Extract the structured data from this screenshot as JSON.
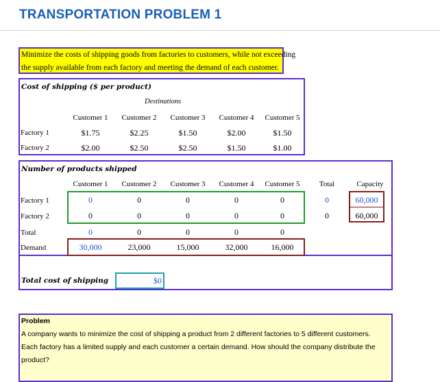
{
  "title": "TRANSPORTATION PROBLEM 1",
  "intro": {
    "line1": "Minimize the costs of shipping goods from factories to customers, while not exceeding",
    "line2": "the supply available from each factory and meeting the demand of each customer."
  },
  "cost_section": {
    "title": "Cost of shipping ($ per product)",
    "destinations_label": "Destinations",
    "customers": [
      "Customer 1",
      "Customer 2",
      "Customer 3",
      "Customer 4",
      "Customer 5"
    ],
    "rows": [
      {
        "label": "Factory 1",
        "values": [
          "$1.75",
          "$2.25",
          "$1.50",
          "$2.00",
          "$1.50"
        ]
      },
      {
        "label": "Factory 2",
        "values": [
          "$2.00",
          "$2.50",
          "$2.50",
          "$1.50",
          "$1.00"
        ]
      }
    ]
  },
  "shipped_section": {
    "title": "Number of products shipped",
    "customers": [
      "Customer 1",
      "Customer 2",
      "Customer 3",
      "Customer 4",
      "Customer 5"
    ],
    "total_header": "Total",
    "capacity_header": "Capacity",
    "rows": [
      {
        "label": "Factory 1",
        "values": [
          "0",
          "0",
          "0",
          "0",
          "0"
        ],
        "total": "0",
        "capacity": "60,000"
      },
      {
        "label": "Factory 2",
        "values": [
          "0",
          "0",
          "0",
          "0",
          "0"
        ],
        "total": "0",
        "capacity": "60,000"
      }
    ],
    "total_row": {
      "label": "Total",
      "values": [
        "0",
        "0",
        "0",
        "0",
        "0"
      ]
    },
    "demand_row": {
      "label": "Demand",
      "values": [
        "30,000",
        "23,000",
        "15,000",
        "32,000",
        "16,000"
      ]
    }
  },
  "total_cost": {
    "label": "Total cost of shipping",
    "value": "$0"
  },
  "problem": {
    "heading": "Problem",
    "line1": "A company wants to minimize the cost of shipping a product from 2 different factories to 5 different customers.",
    "line2": "Each factory has a limited supply and each customer a certain demand. How should the company distribute the",
    "line3": "product?"
  },
  "colors": {
    "title": "#1a5fb4",
    "frame": "#5b2bd0",
    "decision_border": "#1a9a2a",
    "demand_border": "#8a1a1a",
    "cost_border": "#1aa0b0",
    "intro_bg": "#ffff00",
    "problem_bg": "#ffffcc",
    "input_value": "#1f4fd6"
  }
}
